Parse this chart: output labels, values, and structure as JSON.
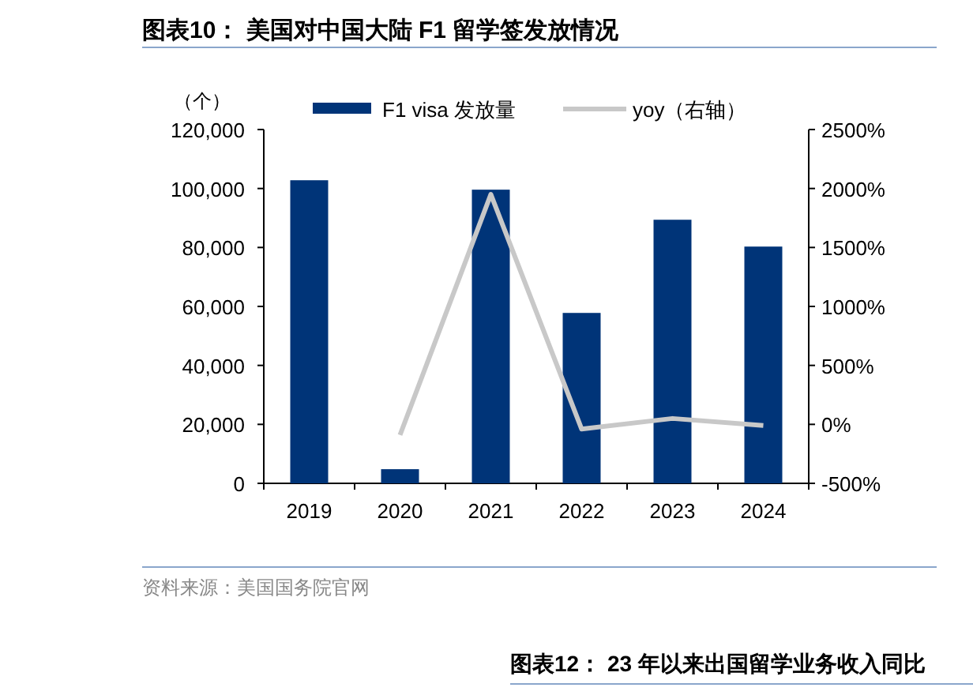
{
  "chart_data": {
    "type": "bar",
    "title": "图表10：  美国对中国大陆 F1 留学签发放情况",
    "ylabel": "（个）",
    "categories": [
      "2019",
      "2020",
      "2021",
      "2022",
      "2023",
      "2024"
    ],
    "series": [
      {
        "name": "F1 visa 发放量",
        "color": "#003478",
        "values": [
          102800,
          4800,
          99600,
          57800,
          89400,
          80300
        ]
      },
      {
        "name": "yoy（右轴）",
        "type": "line",
        "axis": "y2",
        "color": "#c8c8c8",
        "values": [
          null,
          -90,
          1950,
          -40,
          50,
          -10
        ]
      }
    ],
    "ylim": [
      0,
      120000
    ],
    "yticks": [
      {
        "value": 0,
        "label": "0"
      },
      {
        "value": 20000,
        "label": "20,000"
      },
      {
        "value": 40000,
        "label": "40,000"
      },
      {
        "value": 60000,
        "label": "60,000"
      },
      {
        "value": 80000,
        "label": "80,000"
      },
      {
        "value": 100000,
        "label": "100,000"
      },
      {
        "value": 120000,
        "label": "120,000"
      }
    ],
    "y2lim": [
      -500,
      2500
    ],
    "y2ticks": [
      {
        "value": -500,
        "label": "-500%"
      },
      {
        "value": 0,
        "label": "0%"
      },
      {
        "value": 500,
        "label": "500%"
      },
      {
        "value": 1000,
        "label": "1000%"
      },
      {
        "value": 1500,
        "label": "1500%"
      },
      {
        "value": 2000,
        "label": "2000%"
      },
      {
        "value": 2500,
        "label": "2500%"
      }
    ],
    "legend": "top",
    "grid": false,
    "annotations": [
      "资料来源：美国国务院官网",
      "图表12：  23 年以来出国留学业务收入同比"
    ]
  }
}
